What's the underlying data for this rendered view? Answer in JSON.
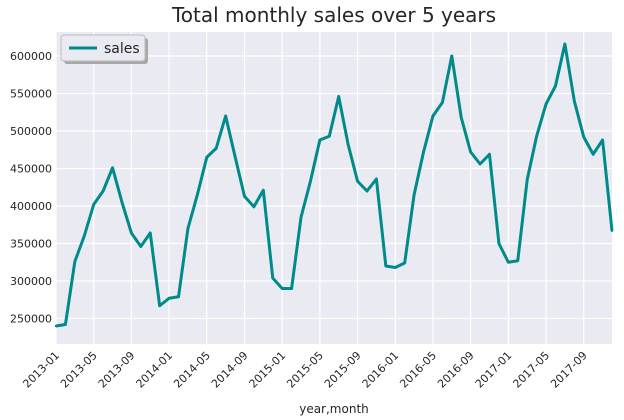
{
  "chart_data": {
    "type": "line",
    "title": "Total monthly sales over 5 years",
    "xlabel": "year,month",
    "ylabel": "",
    "ylim": [
      216000,
      632000
    ],
    "yticks": [
      250000,
      300000,
      350000,
      400000,
      450000,
      500000,
      550000,
      600000
    ],
    "xtick_labels": [
      "2013-01",
      "2013-05",
      "2013-09",
      "2014-01",
      "2014-05",
      "2014-09",
      "2015-01",
      "2015-05",
      "2015-09",
      "2016-01",
      "2016-05",
      "2016-09",
      "2017-01",
      "2017-05",
      "2017-09"
    ],
    "grid": true,
    "legend": {
      "position": "top-left",
      "entries": [
        "sales"
      ]
    },
    "colors": {
      "line": "#008b8b",
      "plot_bg": "#eaeaf2",
      "grid": "#ffffff"
    },
    "categories": [
      "2013-01",
      "2013-02",
      "2013-03",
      "2013-04",
      "2013-05",
      "2013-06",
      "2013-07",
      "2013-08",
      "2013-09",
      "2013-10",
      "2013-11",
      "2013-12",
      "2014-01",
      "2014-02",
      "2014-03",
      "2014-04",
      "2014-05",
      "2014-06",
      "2014-07",
      "2014-08",
      "2014-09",
      "2014-10",
      "2014-11",
      "2014-12",
      "2015-01",
      "2015-02",
      "2015-03",
      "2015-04",
      "2015-05",
      "2015-06",
      "2015-07",
      "2015-08",
      "2015-09",
      "2015-10",
      "2015-11",
      "2015-12",
      "2016-01",
      "2016-02",
      "2016-03",
      "2016-04",
      "2016-05",
      "2016-06",
      "2016-07",
      "2016-08",
      "2016-09",
      "2016-10",
      "2016-11",
      "2016-12",
      "2017-01",
      "2017-02",
      "2017-03",
      "2017-04",
      "2017-05",
      "2017-06",
      "2017-07",
      "2017-08",
      "2017-09",
      "2017-10",
      "2017-11",
      "2017-12"
    ],
    "series": [
      {
        "name": "sales",
        "values": [
          240000,
          242000,
          326000,
          360000,
          402000,
          420000,
          451000,
          405000,
          364000,
          346000,
          364000,
          267000,
          277000,
          279000,
          370000,
          415000,
          465000,
          477000,
          520000,
          466000,
          413000,
          399000,
          421000,
          304000,
          290000,
          290000,
          385000,
          433000,
          488000,
          493000,
          546000,
          482000,
          433000,
          420000,
          436000,
          320000,
          318000,
          324000,
          415000,
          472000,
          520000,
          538000,
          600000,
          518000,
          472000,
          456000,
          469000,
          350000,
          325000,
          327000,
          435000,
          493000,
          536000,
          560000,
          616000,
          540000,
          492000,
          469000,
          488000,
          367000
        ]
      }
    ]
  }
}
